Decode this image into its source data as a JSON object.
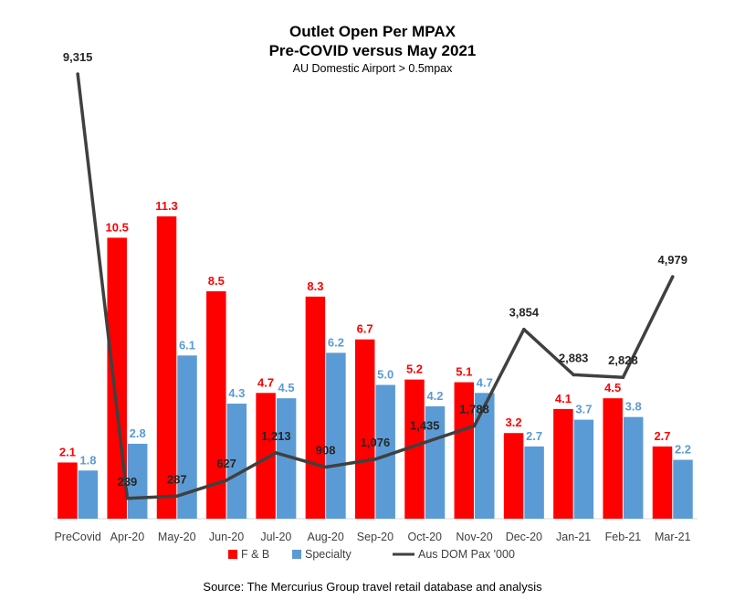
{
  "chart_data": {
    "type": "bar",
    "title": "Outlet Open Per MPAX",
    "subtitle": "Pre-COVID versus May 2021",
    "subtitle2": "AU Domestic Airport > 0.5mpax",
    "categories": [
      "PreCovid",
      "Apr-20",
      "May-20",
      "Jun-20",
      "Jul-20",
      "Aug-20",
      "Sep-20",
      "Oct-20",
      "Nov-20",
      "Dec-20",
      "Jan-21",
      "Feb-21",
      "Mar-21"
    ],
    "series": [
      {
        "name": "F & B",
        "type": "bar",
        "color": "#ff0000",
        "values": [
          2.1,
          10.5,
          11.3,
          8.5,
          4.7,
          8.3,
          6.7,
          5.2,
          5.1,
          3.2,
          4.1,
          4.5,
          2.7
        ],
        "labels": [
          "2.1",
          "10.5",
          "11.3",
          "8.5",
          "4.7",
          "8.3",
          "6.7",
          "5.2",
          "5.1",
          "3.2",
          "4.1",
          "4.5",
          "2.7"
        ]
      },
      {
        "name": "Specialty",
        "type": "bar",
        "color": "#5b9bd5",
        "values": [
          1.8,
          2.8,
          6.1,
          4.3,
          4.5,
          6.2,
          5.0,
          4.2,
          4.7,
          2.7,
          3.7,
          3.8,
          2.2
        ],
        "labels": [
          "1.8",
          "2.8",
          "6.1",
          "4.3",
          "4.5",
          "6.2",
          "5.0",
          "4.2",
          "4.7",
          "2.7",
          "3.7",
          "3.8",
          "2.2"
        ]
      },
      {
        "name": "Aus DOM Pax '000",
        "type": "line",
        "color": "#404040",
        "values": [
          9315,
          239,
          287,
          627,
          1213,
          908,
          1076,
          1435,
          1788,
          3854,
          2883,
          2828,
          4979
        ],
        "labels": [
          "9,315",
          "239",
          "287",
          "627",
          "1,213",
          "908",
          "1,076",
          "1,435",
          "1,788",
          "3,854",
          "2,883",
          "2,828",
          "4,979"
        ]
      }
    ],
    "grid": false,
    "legend": "bottom",
    "source": "Source: The Mercurius Group travel retail database and analysis"
  }
}
